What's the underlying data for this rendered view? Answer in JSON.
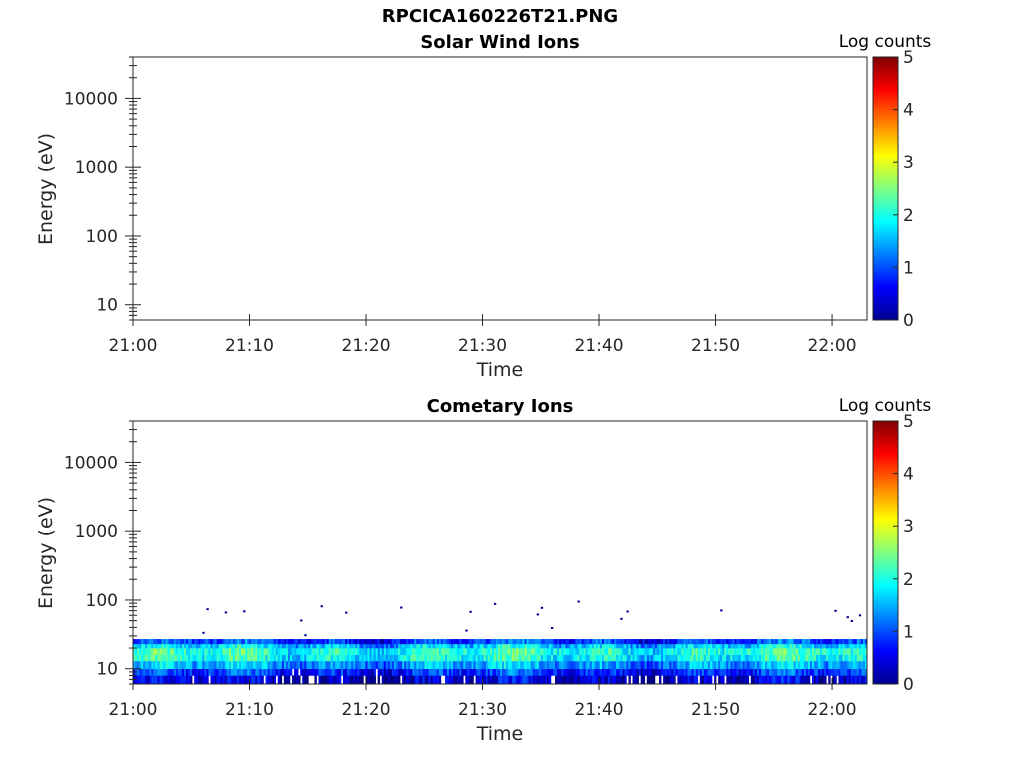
{
  "figure": {
    "title": "RPCICA160226T21.PNG"
  },
  "colorbar_colors": [
    "#00008f",
    "#0000ff",
    "#0080ff",
    "#00ffff",
    "#80ff80",
    "#ffff00",
    "#ff8000",
    "#ff0000",
    "#800000"
  ],
  "chart_data": [
    {
      "type": "heatmap",
      "title": "Solar Wind Ions",
      "xlabel": "Time",
      "ylabel": "Energy (eV)",
      "x_ticks": [
        "21:00",
        "21:10",
        "21:20",
        "21:30",
        "21:40",
        "21:50",
        "22:00"
      ],
      "xlim": [
        "21:00",
        "22:03"
      ],
      "y_scale": "log",
      "y_ticks": [
        10,
        100,
        1000,
        10000
      ],
      "y_tick_labels": [
        "10",
        "100",
        "1000",
        "10000"
      ],
      "ylim": [
        6,
        40000
      ],
      "colorbar": {
        "label": "Log counts",
        "range": [
          0,
          5
        ],
        "ticks": [
          "0",
          "1",
          "2",
          "3",
          "4",
          "5"
        ],
        "colormap": "jet"
      },
      "data": []
    },
    {
      "type": "heatmap",
      "title": "Cometary Ions",
      "xlabel": "Time",
      "ylabel": "Energy (eV)",
      "x_ticks": [
        "21:00",
        "21:10",
        "21:20",
        "21:30",
        "21:40",
        "21:50",
        "22:00"
      ],
      "xlim": [
        "21:00",
        "22:03"
      ],
      "y_scale": "log",
      "y_ticks": [
        10,
        100,
        1000,
        10000
      ],
      "y_tick_labels": [
        "10",
        "100",
        "1000",
        "10000"
      ],
      "ylim": [
        6,
        40000
      ],
      "colorbar": {
        "label": "Log counts",
        "range": [
          0,
          5
        ],
        "ticks": [
          "0",
          "1",
          "2",
          "3",
          "4",
          "5"
        ],
        "colormap": "jet"
      },
      "data": {
        "energy_bands_eV": [
          {
            "energy_min": 6,
            "energy_max": 8,
            "log_counts": 0.3
          },
          {
            "energy_min": 8,
            "energy_max": 10,
            "log_counts": 0.8
          },
          {
            "energy_min": 10,
            "energy_max": 13,
            "log_counts": 1.4
          },
          {
            "energy_min": 13,
            "energy_max": 16,
            "log_counts": 1.9
          },
          {
            "energy_min": 16,
            "energy_max": 20,
            "log_counts": 2.0
          },
          {
            "energy_min": 20,
            "energy_max": 23,
            "log_counts": 1.6
          },
          {
            "energy_min": 23,
            "energy_max": 27,
            "log_counts": 0.9
          },
          {
            "energy_min": 27,
            "energy_max": 100,
            "log_counts": 0.1
          }
        ]
      }
    }
  ]
}
